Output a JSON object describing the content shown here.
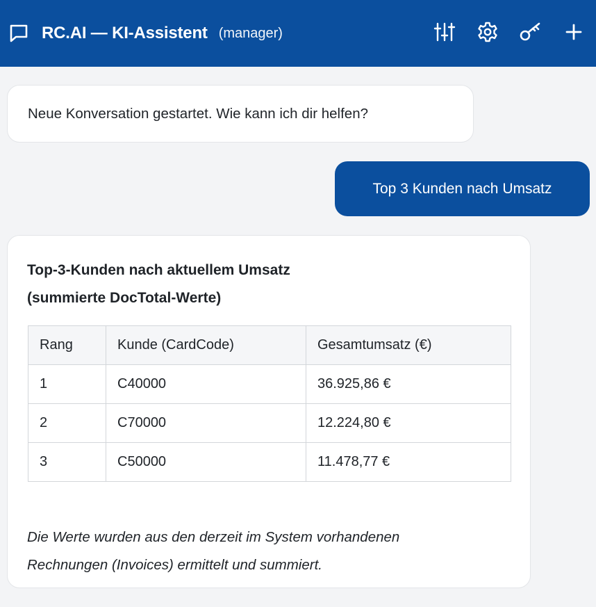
{
  "header": {
    "title": "RC.AI — KI-Assistent",
    "role": "(manager)",
    "icons": [
      "chat-bubble-icon",
      "sliders-icon",
      "gear-icon",
      "key-icon",
      "plus-icon"
    ]
  },
  "messages": {
    "welcome": "Neue Konversation gestartet. Wie kann ich dir helfen?",
    "user_query": "Top 3 Kunden nach Umsatz",
    "answer": {
      "heading_line1": "Top-3-Kunden nach aktuellem Umsatz",
      "heading_line2": "(summierte DocTotal-Werte)",
      "table": {
        "headers": [
          "Rang",
          "Kunde (CardCode)",
          "Gesamtumsatz (€)"
        ],
        "rows": [
          [
            "1",
            "C40000",
            "36.925,86 €"
          ],
          [
            "2",
            "C70000",
            "12.224,80 €"
          ],
          [
            "3",
            "C50000",
            "11.478,77 €"
          ]
        ]
      },
      "note_line1": "Die Werte wurden aus den derzeit im System vorhandenen",
      "note_line2": "Rechnungen (Invoices) ermittelt und summiert."
    }
  },
  "colors": {
    "brand": "#0b4f9e",
    "background": "#f3f4f6",
    "bubble": "#ffffff"
  }
}
